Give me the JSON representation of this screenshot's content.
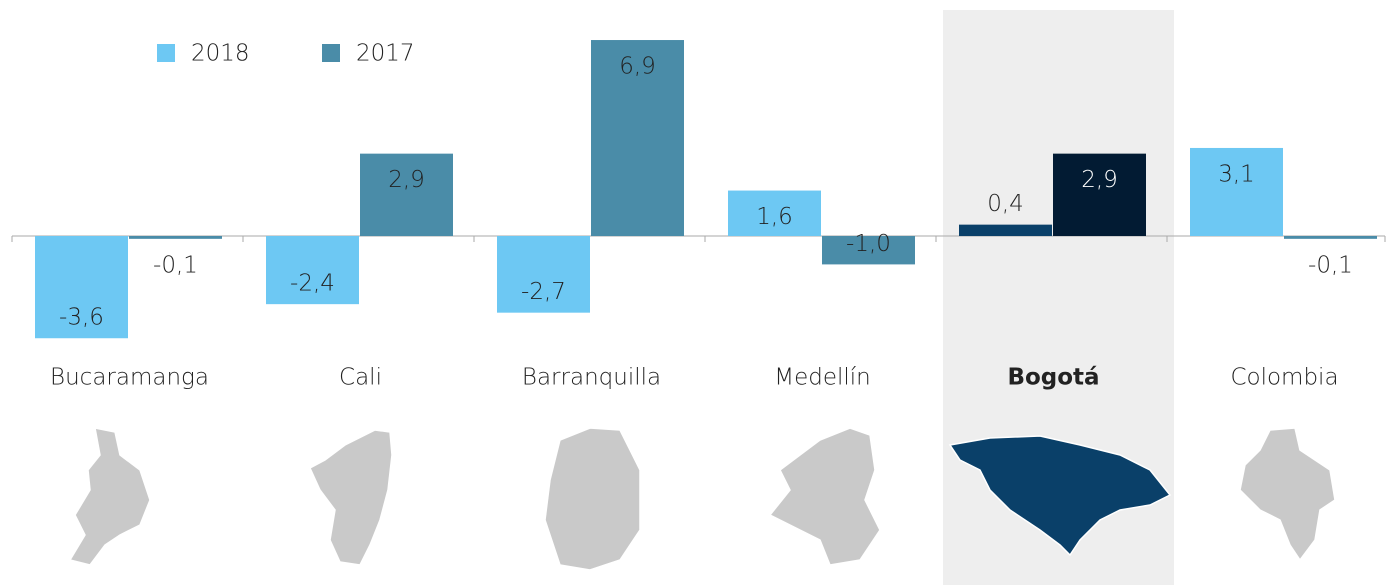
{
  "chart_data": {
    "type": "bar",
    "categories": [
      "Bucaramanga",
      "Cali",
      "Barranquilla",
      "Medellín",
      "Bogotá",
      "Colombia"
    ],
    "highlight": "Bogotá",
    "series": [
      {
        "name": "2018",
        "color": "#6dc8f3",
        "highlight_color": "#0a4069",
        "values": [
          -3.6,
          -2.4,
          -2.7,
          1.6,
          0.4,
          3.1
        ],
        "value_labels": [
          "-3,6",
          "-2,4",
          "-2,7",
          "1,6",
          "0,4",
          "3,1"
        ]
      },
      {
        "name": "2017",
        "color": "#4a8ca8",
        "highlight_color": "#021b33",
        "values": [
          -0.1,
          2.9,
          6.9,
          -1.0,
          2.9,
          -0.1
        ],
        "value_labels": [
          "-0,1",
          "2,9",
          "6,9",
          "-1,0",
          "2,9",
          "-0,1"
        ]
      }
    ],
    "ylim": [
      -4,
      7.5
    ],
    "legend": "top-left"
  }
}
